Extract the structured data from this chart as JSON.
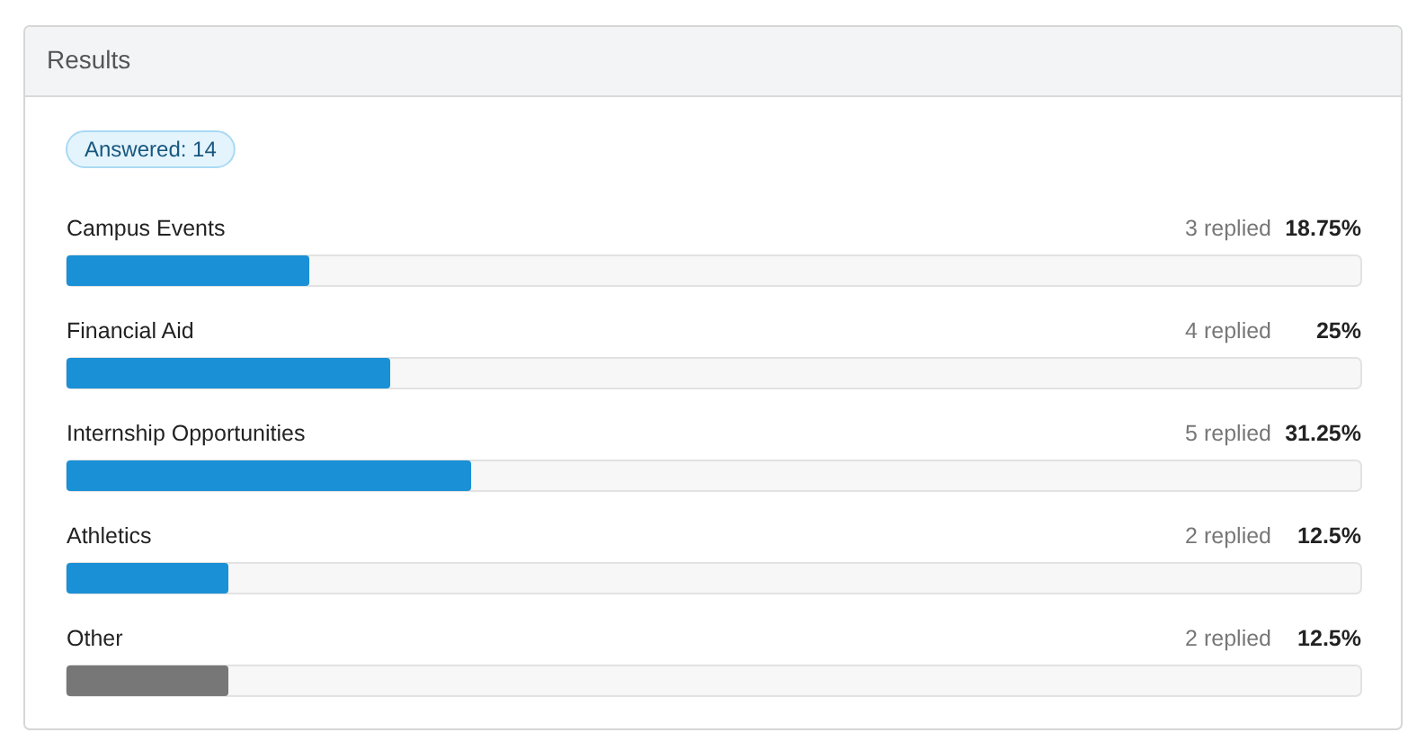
{
  "chart_data": {
    "type": "bar",
    "orientation": "horizontal",
    "title": "Results",
    "categories": [
      "Campus Events",
      "Financial Aid",
      "Internship Opportunities",
      "Athletics",
      "Other"
    ],
    "values": [
      18.75,
      25,
      31.25,
      12.5,
      12.5
    ],
    "colors": [
      "#1a90d6",
      "#1a90d6",
      "#1a90d6",
      "#1a90d6",
      "#777777"
    ],
    "xlim": [
      0,
      100
    ],
    "value_labels": [
      "18.75%",
      "25%",
      "31.25%",
      "12.5%",
      "12.5%"
    ],
    "annotations": [
      "Answered: 14",
      "3 replied",
      "4 replied",
      "5 replied",
      "2 replied",
      "2 replied"
    ]
  }
}
